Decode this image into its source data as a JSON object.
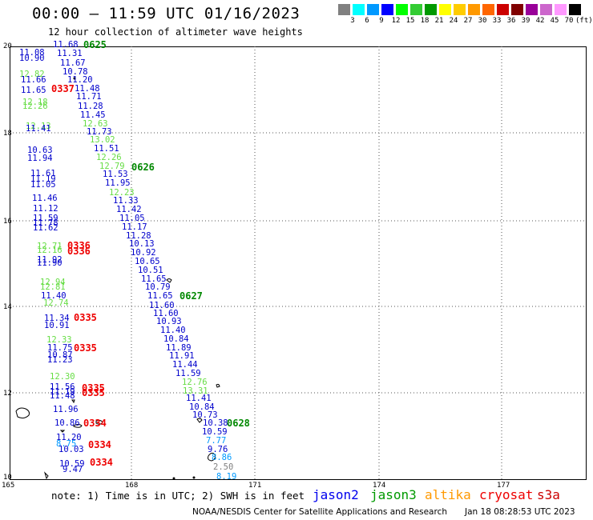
{
  "header": {
    "title": "00:00 — 11:59 UTC 01/16/2023",
    "subtitle": "12 hour collection of altimeter wave heights"
  },
  "legend": {
    "labels": [
      "3",
      "6",
      "9",
      "12",
      "15",
      "18",
      "21",
      "24",
      "27",
      "30",
      "33",
      "36",
      "39",
      "42",
      "45",
      "70"
    ],
    "units": "(ft)",
    "colors": [
      "#808080",
      "#00ffff",
      "#0099ff",
      "#0000ff",
      "#00ff00",
      "#33cc33",
      "#009900",
      "#ffff00",
      "#ffcc00",
      "#ff9900",
      "#ff6600",
      "#cc0000",
      "#800000",
      "#990099",
      "#cc66cc",
      "#ff99ff",
      "#000000"
    ]
  },
  "axes": {
    "y_ticks": [
      "20",
      "18",
      "16",
      "14",
      "12",
      "10"
    ],
    "x_ticks": [
      "165",
      "168",
      "171",
      "174",
      "177"
    ]
  },
  "passes": [
    {
      "label": "0625",
      "color": "#008800"
    },
    {
      "label": "0626",
      "color": "#008800"
    },
    {
      "label": "0627",
      "color": "#008800"
    },
    {
      "label": "0628",
      "color": "#008800"
    },
    {
      "label": "0337",
      "color": "#ee0000"
    },
    {
      "label": "0336",
      "color": "#ee0000"
    },
    {
      "label": "0336",
      "color": "#ee0000"
    },
    {
      "label": "0335",
      "color": "#ee0000"
    },
    {
      "label": "0335",
      "color": "#ee0000"
    },
    {
      "label": "0335",
      "color": "#ee0000"
    },
    {
      "label": "0335",
      "color": "#ee0000"
    },
    {
      "label": "0334",
      "color": "#ee0000"
    },
    {
      "label": "0334",
      "color": "#ee0000"
    },
    {
      "label": "0334",
      "color": "#ee0000"
    }
  ],
  "readings": [
    {
      "v": "11.68",
      "c": "#0000cc"
    },
    {
      "v": "11.08",
      "c": "#0000cc"
    },
    {
      "v": "10.90",
      "c": "#0000cc"
    },
    {
      "v": "11.31",
      "c": "#0000cc"
    },
    {
      "v": "11.67",
      "c": "#0000cc"
    },
    {
      "v": "12.82",
      "c": "#66dd44"
    },
    {
      "v": "10.78",
      "c": "#0000cc"
    },
    {
      "v": "11.66",
      "c": "#0000cc"
    },
    {
      "v": "11.20",
      "c": "#0000cc"
    },
    {
      "v": "11.48",
      "c": "#0000cc"
    },
    {
      "v": "11.65",
      "c": "#0000cc"
    },
    {
      "v": "11.71",
      "c": "#0000cc"
    },
    {
      "v": "12.18",
      "c": "#66dd44"
    },
    {
      "v": "12.26",
      "c": "#66dd44"
    },
    {
      "v": "11.28",
      "c": "#0000cc"
    },
    {
      "v": "11.45",
      "c": "#0000cc"
    },
    {
      "v": "12.63",
      "c": "#66dd44"
    },
    {
      "v": "12.13",
      "c": "#66dd44"
    },
    {
      "v": "11.41",
      "c": "#0000cc"
    },
    {
      "v": "11.73",
      "c": "#0000cc"
    },
    {
      "v": "13.02",
      "c": "#66dd44"
    },
    {
      "v": "10.63",
      "c": "#0000cc"
    },
    {
      "v": "11.51",
      "c": "#0000cc"
    },
    {
      "v": "11.94",
      "c": "#0000cc"
    },
    {
      "v": "12.26",
      "c": "#66dd44"
    },
    {
      "v": "12.79",
      "c": "#66dd44"
    },
    {
      "v": "11.61",
      "c": "#0000cc"
    },
    {
      "v": "11.53",
      "c": "#0000cc"
    },
    {
      "v": "11.19",
      "c": "#0000cc"
    },
    {
      "v": "11.05",
      "c": "#0000cc"
    },
    {
      "v": "11.95",
      "c": "#0000cc"
    },
    {
      "v": "12.23",
      "c": "#66dd44"
    },
    {
      "v": "11.46",
      "c": "#0000cc"
    },
    {
      "v": "11.33",
      "c": "#0000cc"
    },
    {
      "v": "11.12",
      "c": "#0000cc"
    },
    {
      "v": "11.42",
      "c": "#0000cc"
    },
    {
      "v": "11.59",
      "c": "#0000cc"
    },
    {
      "v": "11.05",
      "c": "#0000cc"
    },
    {
      "v": "11.78",
      "c": "#0000cc"
    },
    {
      "v": "11.62",
      "c": "#0000cc"
    },
    {
      "v": "11.17",
      "c": "#0000cc"
    },
    {
      "v": "11.28",
      "c": "#0000cc"
    },
    {
      "v": "12.71",
      "c": "#66dd44"
    },
    {
      "v": "10.13",
      "c": "#0000cc"
    },
    {
      "v": "12.16",
      "c": "#66dd44"
    },
    {
      "v": "10.92",
      "c": "#0000cc"
    },
    {
      "v": "11.92",
      "c": "#0000cc"
    },
    {
      "v": "11.90",
      "c": "#0000cc"
    },
    {
      "v": "10.65",
      "c": "#0000cc"
    },
    {
      "v": "10.51",
      "c": "#0000cc"
    },
    {
      "v": "11.65",
      "c": "#0000cc"
    },
    {
      "v": "12.94",
      "c": "#66dd44"
    },
    {
      "v": "12.81",
      "c": "#66dd44"
    },
    {
      "v": "10.79",
      "c": "#0000cc"
    },
    {
      "v": "11.40",
      "c": "#0000cc"
    },
    {
      "v": "11.65",
      "c": "#0000cc"
    },
    {
      "v": "12.74",
      "c": "#66dd44"
    },
    {
      "v": "11.60",
      "c": "#0000cc"
    },
    {
      "v": "11.60",
      "c": "#0000cc"
    },
    {
      "v": "11.34",
      "c": "#0000cc"
    },
    {
      "v": "10.93",
      "c": "#0000cc"
    },
    {
      "v": "10.91",
      "c": "#0000cc"
    },
    {
      "v": "11.40",
      "c": "#0000cc"
    },
    {
      "v": "10.84",
      "c": "#0000cc"
    },
    {
      "v": "12.33",
      "c": "#66dd44"
    },
    {
      "v": "11.89",
      "c": "#0000cc"
    },
    {
      "v": "11.75",
      "c": "#0000cc"
    },
    {
      "v": "11.91",
      "c": "#0000cc"
    },
    {
      "v": "10.87",
      "c": "#0000cc"
    },
    {
      "v": "11.23",
      "c": "#0000cc"
    },
    {
      "v": "11.44",
      "c": "#0000cc"
    },
    {
      "v": "11.59",
      "c": "#0000cc"
    },
    {
      "v": "12.30",
      "c": "#66dd44"
    },
    {
      "v": "12.76",
      "c": "#66dd44"
    },
    {
      "v": "11.56",
      "c": "#0000cc"
    },
    {
      "v": "13.31",
      "c": "#66dd44"
    },
    {
      "v": "11.19",
      "c": "#0000cc"
    },
    {
      "v": "11.48",
      "c": "#0000cc"
    },
    {
      "v": "11.41",
      "c": "#0000cc"
    },
    {
      "v": "10.84",
      "c": "#0000cc"
    },
    {
      "v": "11.96",
      "c": "#0000cc"
    },
    {
      "v": "10.73",
      "c": "#0000cc"
    },
    {
      "v": "10.38",
      "c": "#0000cc"
    },
    {
      "v": "10.86",
      "c": "#0000cc"
    },
    {
      "v": "10.59",
      "c": "#0000cc"
    },
    {
      "v": "11.20",
      "c": "#0000cc"
    },
    {
      "v": "7.77",
      "c": "#0099ff"
    },
    {
      "v": "8.75",
      "c": "#0099ff"
    },
    {
      "v": "10.03",
      "c": "#0000cc"
    },
    {
      "v": "9.76",
      "c": "#0000cc"
    },
    {
      "v": "8.86",
      "c": "#0099ff"
    },
    {
      "v": "10.59",
      "c": "#0000cc"
    },
    {
      "v": "2.50",
      "c": "#808080"
    },
    {
      "v": "9.47",
      "c": "#0000cc"
    },
    {
      "v": "8.19",
      "c": "#0099ff"
    }
  ],
  "notes": {
    "note": "note: 1) Time is in UTC; 2) SWH is in feet",
    "credit": "NOAA/NESDIS Center for Satellite Applications and Research",
    "timestamp": "Jan 18 08:28:53 UTC 2023"
  },
  "satellites": [
    {
      "name": "jason2",
      "color": "#0000ee"
    },
    {
      "name": "jason3",
      "color": "#009900"
    },
    {
      "name": "altika",
      "color": "#ff9900"
    },
    {
      "name": "cryosat",
      "color": "#ee0000"
    },
    {
      "name": "s3a",
      "color": "#cc0000"
    }
  ]
}
